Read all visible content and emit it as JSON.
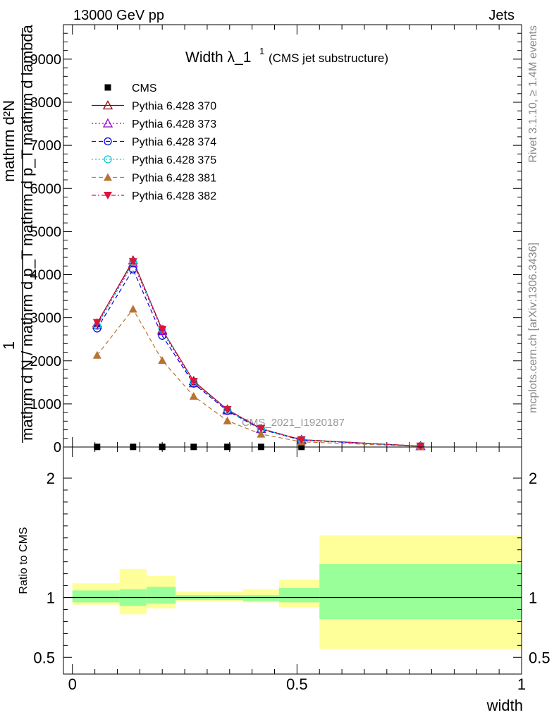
{
  "header": {
    "left": "13000 GeV pp",
    "right": "Jets"
  },
  "side_notes": {
    "top": "Rivet 3.1.10, ≥ 1.4M events",
    "bottom": "mcplots.cern.ch [arXiv:1306.3436]"
  },
  "watermark": "CMS_2021_I1920187",
  "chart_data": [
    {
      "panel": "main",
      "type": "line",
      "title": "Width λ_1",
      "title_sup": "1",
      "subtitle": "(CMS jet substructure)",
      "ylabel_num": "1",
      "ylabel_den": "mathrm d N / mathrm d p_T mathrm d p_T mathrm d lambda",
      "ylabel_top": "mathrm d²N",
      "ylim": [
        0,
        9800
      ],
      "xlim": [
        -0.02,
        1.0
      ],
      "y_ticks": [
        {
          "value": 0,
          "label": "0"
        },
        {
          "value": 1000,
          "label": "1000"
        },
        {
          "value": 2000,
          "label": "2000"
        },
        {
          "value": 3000,
          "label": "3000"
        },
        {
          "value": 4000,
          "label": "4000"
        },
        {
          "value": 5000,
          "label": "5000"
        },
        {
          "value": 6000,
          "label": "6000"
        },
        {
          "value": 7000,
          "label": "7000"
        },
        {
          "value": 8000,
          "label": "8000"
        },
        {
          "value": 9000,
          "label": "9000"
        }
      ],
      "legend_position": "top-left",
      "series": [
        {
          "name": "CMS",
          "color": "#000000",
          "marker": "square",
          "dash": "none",
          "x": [
            0.055,
            0.135,
            0.2,
            0.27,
            0.345,
            0.42,
            0.51,
            0.775
          ],
          "y": [
            3,
            3,
            3,
            3,
            3,
            3,
            3,
            3
          ]
        },
        {
          "name": "Pythia 6.428 370",
          "color": "#8b0000",
          "marker": "triangle-open",
          "dash": "none",
          "x": [
            0.055,
            0.135,
            0.2,
            0.27,
            0.345,
            0.42,
            0.51,
            0.775
          ],
          "y": [
            2870,
            4330,
            2720,
            1530,
            870,
            420,
            170,
            20
          ]
        },
        {
          "name": "Pythia 6.428 373",
          "color": "#9400d3",
          "marker": "triangle-open",
          "dash": "2,3",
          "x": [
            0.055,
            0.135,
            0.2,
            0.27,
            0.345,
            0.42,
            0.51,
            0.775
          ],
          "y": [
            2830,
            4260,
            2690,
            1480,
            850,
            420,
            160,
            20
          ]
        },
        {
          "name": "Pythia 6.428 374",
          "color": "#0000dd",
          "marker": "circle-open",
          "dash": "6,4",
          "x": [
            0.055,
            0.135,
            0.2,
            0.27,
            0.345,
            0.42,
            0.51,
            0.775
          ],
          "y": [
            2750,
            4120,
            2580,
            1470,
            840,
            410,
            160,
            20
          ]
        },
        {
          "name": "Pythia 6.428 375",
          "color": "#00ced1",
          "marker": "circle-open",
          "dash": "2,3",
          "x": [
            0.055,
            0.135,
            0.2,
            0.27,
            0.345,
            0.42,
            0.51,
            0.775
          ],
          "y": [
            2810,
            4290,
            2740,
            1500,
            860,
            420,
            170,
            20
          ]
        },
        {
          "name": "Pythia 6.428 381",
          "color": "#b87333",
          "marker": "triangle-filled",
          "dash": "6,4",
          "x": [
            0.055,
            0.135,
            0.2,
            0.27,
            0.345,
            0.42,
            0.51,
            0.775
          ],
          "y": [
            2130,
            3200,
            2010,
            1180,
            610,
            300,
            120,
            15
          ]
        },
        {
          "name": "Pythia 6.428 382",
          "color": "#dc143c",
          "marker": "triangle-down-filled",
          "dash": "6,3,2,3",
          "x": [
            0.055,
            0.135,
            0.2,
            0.27,
            0.345,
            0.42,
            0.51,
            0.775
          ],
          "y": [
            2890,
            4300,
            2730,
            1520,
            870,
            430,
            170,
            20
          ]
        }
      ]
    },
    {
      "panel": "ratio",
      "type": "area",
      "ylabel": "Ratio to CMS",
      "xlabel": "width",
      "xlim": [
        -0.02,
        1.0
      ],
      "ylim": [
        0.36,
        2.26
      ],
      "y_ticks": [
        {
          "value": 0.5,
          "label": "0.5"
        },
        {
          "value": 1,
          "label": "1"
        },
        {
          "value": 2,
          "label": "2"
        }
      ],
      "x_ticks": [
        {
          "value": 0,
          "label": "0"
        },
        {
          "value": 0.5,
          "label": "0.5"
        },
        {
          "value": 1,
          "label": "1"
        }
      ],
      "bands": [
        {
          "x0": 0.0,
          "x1": 0.105,
          "green_lo": 0.96,
          "green_hi": 1.06,
          "yellow_lo": 0.94,
          "yellow_hi": 1.12
        },
        {
          "x0": 0.105,
          "x1": 0.165,
          "green_lo": 0.93,
          "green_hi": 1.07,
          "yellow_lo": 0.86,
          "yellow_hi": 1.24
        },
        {
          "x0": 0.165,
          "x1": 0.23,
          "green_lo": 0.95,
          "green_hi": 1.09,
          "yellow_lo": 0.91,
          "yellow_hi": 1.18
        },
        {
          "x0": 0.23,
          "x1": 0.31,
          "green_lo": 0.98,
          "green_hi": 1.02,
          "yellow_lo": 0.97,
          "yellow_hi": 1.05
        },
        {
          "x0": 0.31,
          "x1": 0.38,
          "green_lo": 0.98,
          "green_hi": 1.02,
          "yellow_lo": 0.97,
          "yellow_hi": 1.05
        },
        {
          "x0": 0.38,
          "x1": 0.46,
          "green_lo": 0.97,
          "green_hi": 1.02,
          "yellow_lo": 0.96,
          "yellow_hi": 1.07
        },
        {
          "x0": 0.46,
          "x1": 0.55,
          "green_lo": 0.96,
          "green_hi": 1.08,
          "yellow_lo": 0.92,
          "yellow_hi": 1.15
        },
        {
          "x0": 0.55,
          "x1": 1.0,
          "green_lo": 0.82,
          "green_hi": 1.28,
          "yellow_lo": 0.57,
          "yellow_hi": 1.52
        }
      ]
    }
  ]
}
